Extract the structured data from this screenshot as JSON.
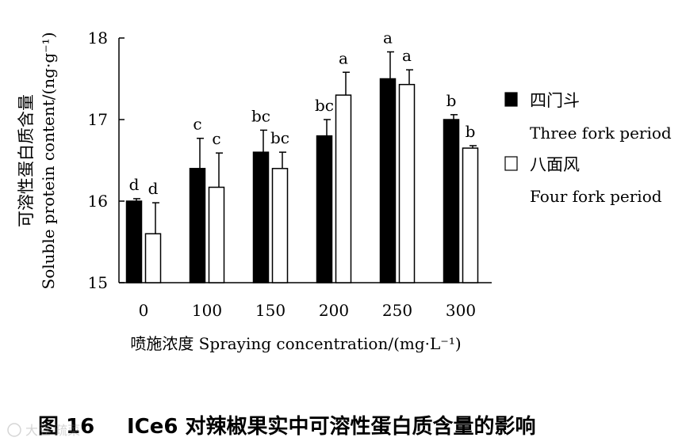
{
  "chart_data": {
    "type": "bar",
    "categories": [
      "0",
      "100",
      "150",
      "200",
      "250",
      "300"
    ],
    "series": [
      {
        "name": "四门斗",
        "name_en": "Three fork period",
        "fill": "#000000",
        "values": [
          16.0,
          16.4,
          16.6,
          16.8,
          17.5,
          17.0
        ],
        "errors": [
          0.03,
          0.37,
          0.27,
          0.2,
          0.33,
          0.06
        ],
        "letters": [
          "d",
          "c",
          "bc",
          "bc",
          "a",
          "b"
        ]
      },
      {
        "name": "八面风",
        "name_en": "Four fork period",
        "fill": "#ffffff",
        "values": [
          15.6,
          16.17,
          16.4,
          17.3,
          17.43,
          16.65
        ],
        "errors": [
          0.38,
          0.42,
          0.2,
          0.28,
          0.18,
          0.03
        ],
        "letters": [
          "d",
          "c",
          "bc",
          "a",
          "a",
          "b"
        ]
      }
    ],
    "ylim": [
      15,
      18
    ],
    "yticks": [
      "15",
      "16",
      "17",
      "18"
    ],
    "ylabel_cn": "可溶性蛋白质含量",
    "ylabel_en": "Soluble protein content/(ng·g⁻¹)",
    "xlabel": "喷施浓度 Spraying concentration/(mg·L⁻¹)",
    "legend_position": "right",
    "grid": false
  },
  "caption": {
    "fig_label": "图 16",
    "title": "ICe6 对辣椒果实中可溶性蛋白质含量的影响"
  },
  "watermark": "大豆·疏菜"
}
